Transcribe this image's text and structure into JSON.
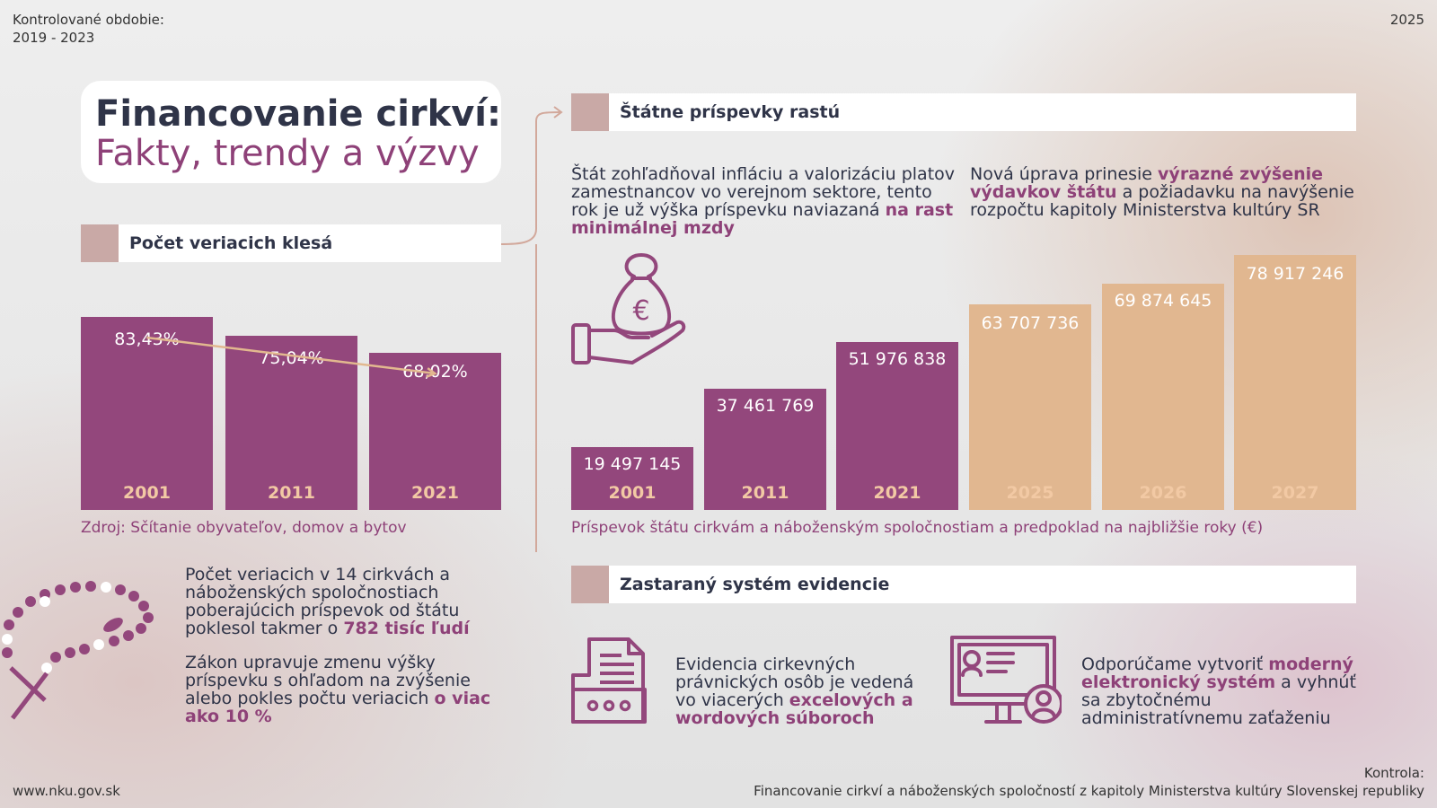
{
  "meta": {
    "period_label": "Kontrolované obdobie:",
    "period_value": "2019 - 2023",
    "year": "2025",
    "website": "www.nku.gov.sk",
    "control_label": "Kontrola:",
    "control_value": "Financovanie cirkví a náboženských spoločností z kapitoly Ministerstva kultúry Slovenskej republiky"
  },
  "title": {
    "line1": "Financovanie cirkví:",
    "line2": "Fakty, trendy a výzvy"
  },
  "believers": {
    "heading": "Počet veriacich klesá",
    "source": "Zdroj: Sčítanie obyvateľov, domov a bytov",
    "text1_before": "Počet veriacich v 14 cirkvách a náboženských spoločnostiach poberajúcich príspevok od štátu poklesol takmer o ",
    "text1_highlight": "782 tisíc ľudí",
    "text2_before": "Zákon upravuje zmenu výšky príspevku s ohľadom na zvýšenie alebo pokles počtu veriacich ",
    "text2_highlight": "o viac ako 10 %"
  },
  "contributions": {
    "heading": "Štátne príspevky rastú",
    "text_left_before": "Štát zohľadňoval infláciu a valorizáciu platov zamestnancov vo verejnom sektore, tento rok je už výška príspevku naviazaná ",
    "text_left_highlight": "na rast minimálnej mzdy",
    "text_right_before": "Nová úprava prinesie ",
    "text_right_highlight": "výrazné zvýšenie výdavkov štátu",
    "text_right_after": " a požiadavku na navýšenie rozpočtu kapitoly Ministerstva kultúry SR",
    "caption": "Príspevok štátu cirkvám a náboženským spoločnostiam a predpoklad na najbližšie roky (€)"
  },
  "evidence": {
    "heading": "Zastaraný systém evidencie",
    "text_left_before": "Evidencia cirkevných právnických osôb je vedená vo viacerých ",
    "text_left_highlight": "excelových a wordových súboroch",
    "text_right_before": "Odporúčame vytvoriť ",
    "text_right_highlight": "moderný elektronický systém",
    "text_right_after": " a vyhnúť sa zbytočnému administratívnemu zaťaženiu"
  },
  "colors": {
    "purple": "#93477c",
    "peach": "#e1b790",
    "dark": "#2f3448",
    "accent": "#8e4178",
    "square": "#c9a9a6"
  },
  "icons": [
    "rosary-icon",
    "money-bag-hand-icon",
    "documents-folder-icon",
    "computer-user-icon"
  ],
  "chart_data": [
    {
      "type": "bar",
      "title": "Počet veriacich klesá",
      "categories": [
        "2001",
        "2011",
        "2021"
      ],
      "values": [
        83.43,
        75.04,
        68.02
      ],
      "labels": [
        "83,43%",
        "75,04%",
        "68,02%"
      ],
      "ylim": [
        0,
        100
      ],
      "annotations": [
        "downward trend arrow"
      ]
    },
    {
      "type": "bar",
      "title": "Príspevok štátu cirkvám a náboženským spoločnostiam a predpoklad na najbližšie roky (€)",
      "categories": [
        "2001",
        "2011",
        "2021",
        "2025",
        "2026",
        "2027"
      ],
      "values": [
        19497145,
        37461769,
        51976838,
        63707736,
        69874645,
        78917246
      ],
      "labels": [
        "19 497 145",
        "37 461 769",
        "51 976 838",
        "63 707 736",
        "69 874 645",
        "78 917 246"
      ],
      "projected": [
        false,
        false,
        false,
        true,
        true,
        true
      ],
      "ylim": [
        0,
        80000000
      ]
    }
  ]
}
